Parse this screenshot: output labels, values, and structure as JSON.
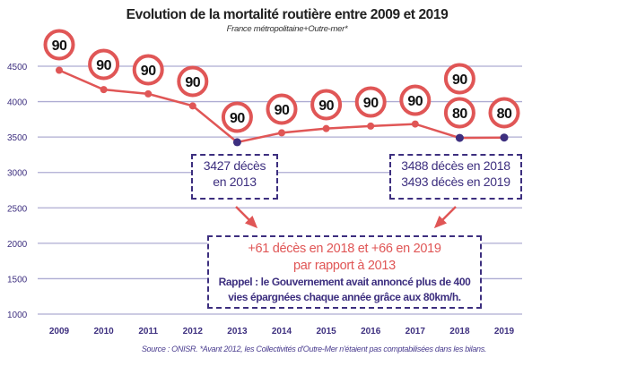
{
  "chart_data": {
    "type": "line",
    "title": "Evolution de la mortalité routière entre 2009 et 2019",
    "subtitle": "France métropolitaine+Outre-mer*",
    "categories": [
      "2009",
      "2010",
      "2011",
      "2012",
      "2013",
      "2014",
      "2015",
      "2016",
      "2017",
      "2018",
      "2019"
    ],
    "series": [
      {
        "values": [
          4443,
          4170,
          4110,
          3940,
          3427,
          3560,
          3620,
          3655,
          3684,
          3488,
          3493
        ]
      }
    ],
    "highlighted_points": [
      "2013",
      "2018",
      "2019"
    ],
    "speed_limit_signs": [
      [
        "90"
      ],
      [
        "90"
      ],
      [
        "90"
      ],
      [
        "90"
      ],
      [
        "90"
      ],
      [
        "90"
      ],
      [
        "90"
      ],
      [
        "90"
      ],
      [
        "90"
      ],
      [
        "90",
        "80"
      ],
      [
        "80"
      ]
    ],
    "yticks": [
      4500,
      4000,
      3500,
      3000,
      2500,
      2000,
      1500,
      1000
    ],
    "ylim": [
      1000,
      4500
    ],
    "grid": true,
    "xlabel": "",
    "ylabel": "",
    "annotations": {
      "box_2013": [
        "3427 décès",
        "en 2013"
      ],
      "box_2018_2019": [
        "3488 décès en 2018",
        "3493 décès en 2019"
      ],
      "box_comparison": {
        "red_lines": [
          "+61 décès en 2018  et +66 en 2019",
          "par rapport à 2013"
        ],
        "reminder_lines": [
          "Rappel : le Gouvernement avait annoncé plus de 400",
          "vies épargnées chaque année grâce aux 80km/h."
        ]
      }
    },
    "source": "Source : ONISR. *Avant 2012, les Collectivités d'Outre-Mer n'étaient pas comptabilisées dans les bilans."
  },
  "colors": {
    "line": "#e05656",
    "highlight": "#3d2f7f",
    "grid": "#aeacd2",
    "text": "#3d2f7f"
  }
}
